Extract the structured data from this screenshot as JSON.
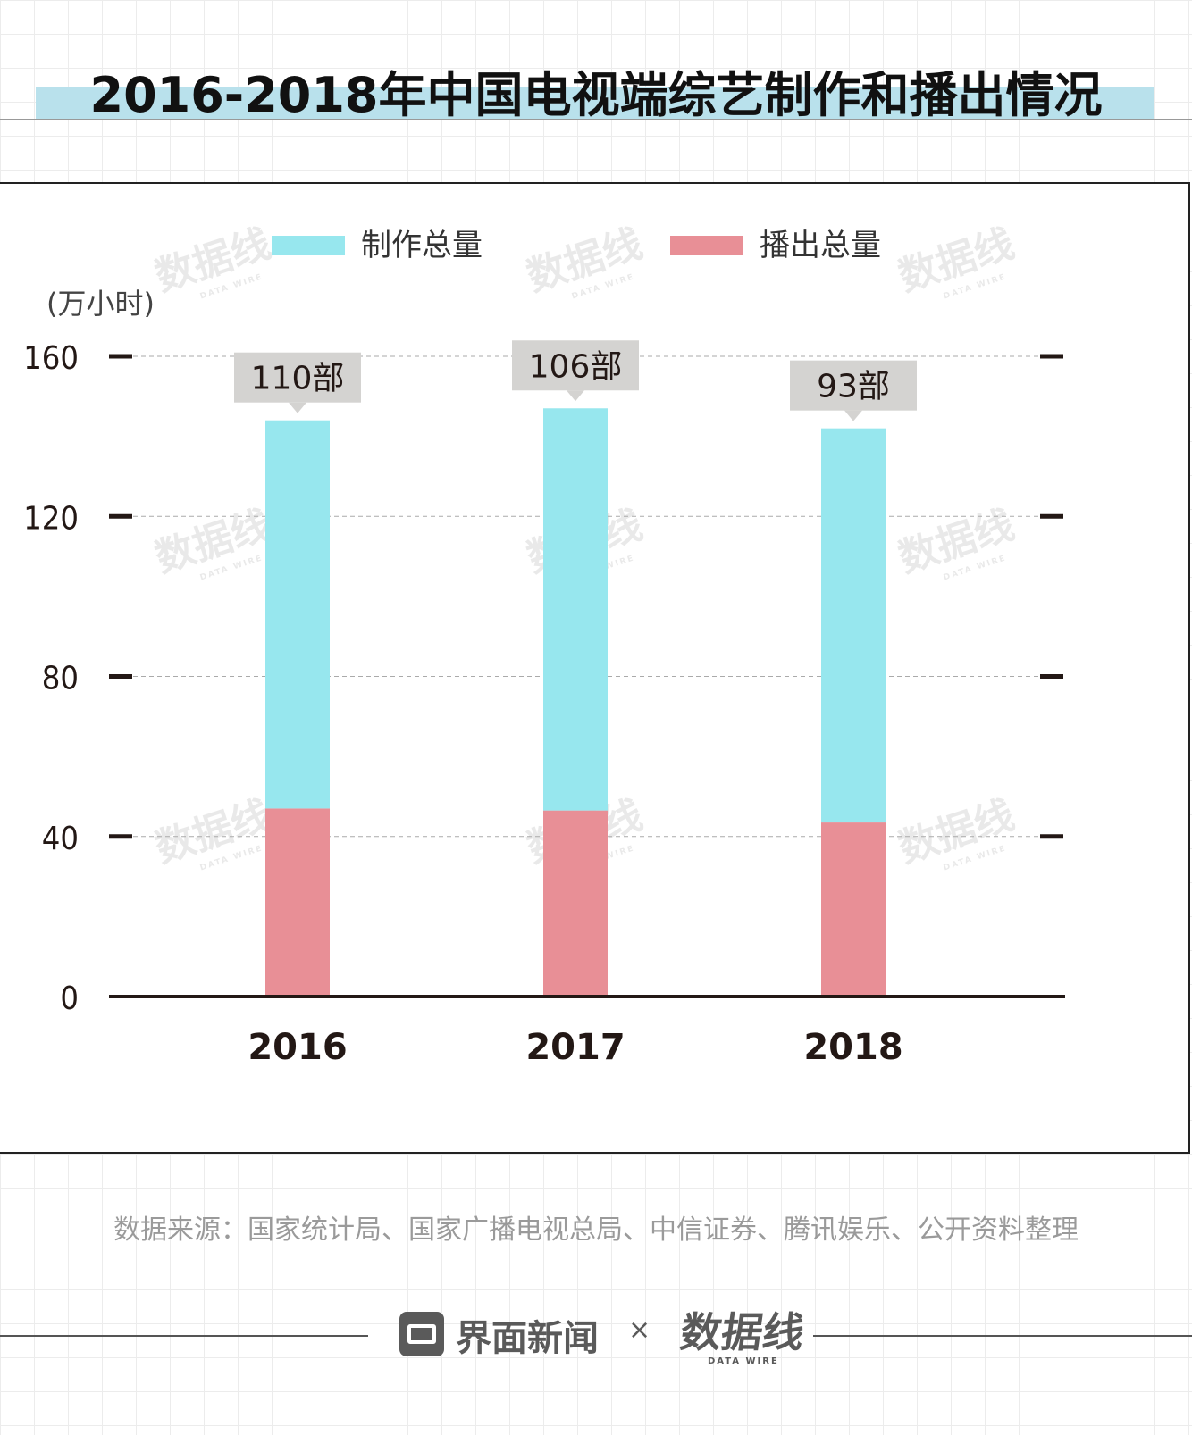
{
  "title": "2016-2018年中国电视端综艺制作和播出情况",
  "source": "数据来源：国家统计局、国家广播电视总局、中信证券、腾讯娱乐、公开资料整理",
  "footer": {
    "brand": "界面新闻",
    "times": "×",
    "partner_logo": "数据线",
    "partner_sub": "DATA WIRE"
  },
  "watermark": {
    "text": "数据线",
    "sub": "DATA WIRE"
  },
  "colors": {
    "production": "#97e7ee",
    "broadcast": "#e88f96",
    "title_band": "#b9e1ec",
    "label_box": "#d4d3d1"
  },
  "chart_data": {
    "type": "bar",
    "stacked": true,
    "categories": [
      "2016",
      "2017",
      "2018"
    ],
    "ylabel": "(万小时)",
    "ylim": [
      0,
      160
    ],
    "yticks": [
      0,
      40,
      80,
      120,
      160
    ],
    "legend": [
      "制作总量",
      "播出总量"
    ],
    "legend_position": "top",
    "grid": true,
    "series": [
      {
        "name": "播出总量",
        "values": [
          47,
          46.5,
          43.5
        ]
      },
      {
        "name": "制作总量",
        "values": [
          97,
          100.5,
          98.5
        ]
      }
    ],
    "annotations": [
      "110部",
      "106部",
      "93部"
    ]
  }
}
